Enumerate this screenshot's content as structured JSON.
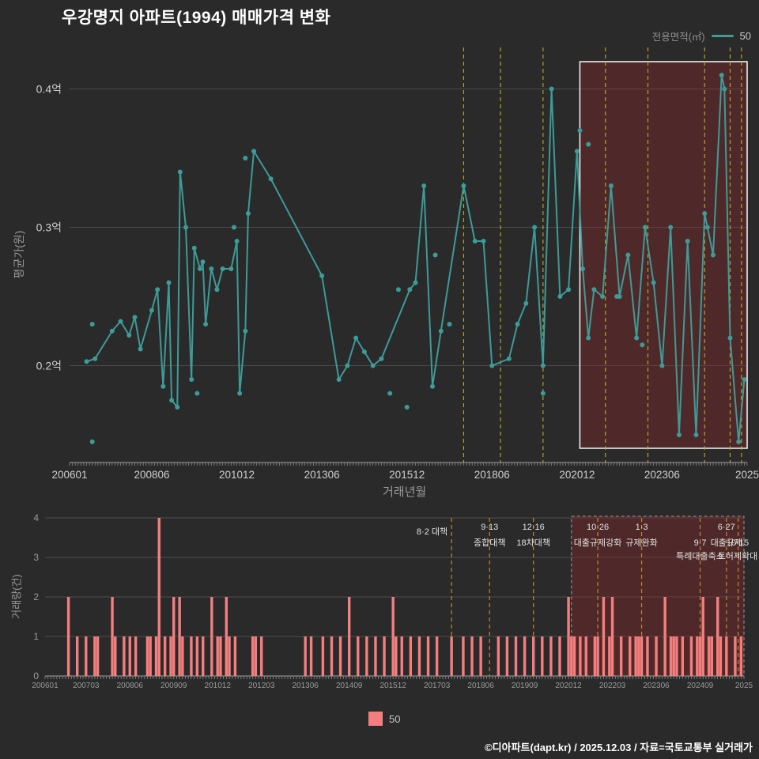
{
  "title": "우강명지 아파트(1994) 매매가격 변화",
  "legend": {
    "label": "전용면적(㎡)",
    "value": "50"
  },
  "bottom_legend": {
    "value": "50"
  },
  "footer": "©디아파트(dapt.kr) / 2025.12.03 / 자료=국토교통부 실거래가",
  "colors": {
    "background": "#2a2a2a",
    "title_text": "#ffffff",
    "axis_text": "#cfcfcf",
    "muted_text": "#9a9a9a",
    "grid": "#4d4d4d",
    "axis_line": "#8a8a8a",
    "line": "#3d9b98",
    "bar": "#f47e7e",
    "policy_top": "#b3a12c",
    "policy_bottom": "#c4862c",
    "highlight_fill": "rgba(150,40,40,0.35)",
    "highlight_border_top": "#ececec",
    "highlight_border_bottom": "#9a9a9a",
    "annotation_text": "#e2e2e2"
  },
  "chart_data": [
    {
      "type": "line",
      "title": "우강명지 아파트(1994) 매매가격 변화",
      "xlabel": "거래년월",
      "ylabel": "평균가(원)",
      "ylim": [
        0.13,
        0.43
      ],
      "grid": true,
      "legend_position": "top-right",
      "yticks": [
        {
          "value": 0.2,
          "label": "0.2억"
        },
        {
          "value": 0.3,
          "label": "0.3억"
        },
        {
          "value": 0.4,
          "label": "0.4억"
        }
      ],
      "xticks": [
        {
          "month": "200601",
          "label": "200601"
        },
        {
          "month": "200806",
          "label": "200806"
        },
        {
          "month": "201012",
          "label": "201012"
        },
        {
          "month": "201306",
          "label": "201306"
        },
        {
          "month": "201512",
          "label": "201512"
        },
        {
          "month": "201806",
          "label": "201806"
        },
        {
          "month": "202012",
          "label": "202012"
        },
        {
          "month": "202306",
          "label": "202306"
        },
        {
          "month": "202512",
          "label": "2025"
        }
      ],
      "series": [
        {
          "name": "50",
          "points": [
            [
              "200607",
              0.203
            ],
            [
              "200610",
              0.205
            ],
            [
              "200704",
              0.225
            ],
            [
              "200707",
              0.232
            ],
            [
              "200710",
              0.222
            ],
            [
              "200712",
              0.235
            ],
            [
              "200802",
              0.212
            ],
            [
              "200806",
              0.24
            ],
            [
              "200808",
              0.255
            ],
            [
              "200810",
              0.185
            ],
            [
              "200812",
              0.26
            ],
            [
              "200901",
              0.175
            ],
            [
              "200903",
              0.17
            ],
            [
              "200904",
              0.34
            ],
            [
              "200906",
              0.3
            ],
            [
              "200908",
              0.19
            ],
            [
              "200909",
              0.285
            ],
            [
              "200911",
              0.27
            ],
            [
              "200912",
              0.275
            ],
            [
              "201001",
              0.23
            ],
            [
              "201003",
              0.27
            ],
            [
              "201005",
              0.255
            ],
            [
              "201007",
              0.27
            ],
            [
              "201010",
              0.27
            ],
            [
              "201012",
              0.29
            ],
            [
              "201101",
              0.18
            ],
            [
              "201103",
              0.225
            ],
            [
              "201104",
              0.31
            ],
            [
              "201106",
              0.355
            ],
            [
              "201112",
              0.335
            ],
            [
              "201306",
              0.265
            ],
            [
              "201312",
              0.19
            ],
            [
              "201403",
              0.2
            ],
            [
              "201406",
              0.22
            ],
            [
              "201409",
              0.21
            ],
            [
              "201412",
              0.2
            ],
            [
              "201503",
              0.205
            ],
            [
              "201601",
              0.255
            ],
            [
              "201603",
              0.26
            ],
            [
              "201606",
              0.33
            ],
            [
              "201609",
              0.185
            ],
            [
              "201612",
              0.225
            ],
            [
              "201708",
              0.33
            ],
            [
              "201712",
              0.29
            ],
            [
              "201803",
              0.29
            ],
            [
              "201806",
              0.2
            ],
            [
              "201812",
              0.205
            ],
            [
              "201903",
              0.23
            ],
            [
              "201906",
              0.245
            ],
            [
              "201909",
              0.3
            ],
            [
              "201912",
              0.2
            ],
            [
              "202003",
              0.4
            ],
            [
              "202006",
              0.25
            ],
            [
              "202009",
              0.255
            ],
            [
              "202012",
              0.355
            ],
            [
              "202102",
              0.27
            ],
            [
              "202104",
              0.22
            ],
            [
              "202106",
              0.255
            ],
            [
              "202109",
              0.25
            ],
            [
              "202112",
              0.33
            ],
            [
              "202203",
              0.25
            ],
            [
              "202206",
              0.28
            ],
            [
              "202209",
              0.22
            ],
            [
              "202212",
              0.3
            ],
            [
              "202303",
              0.26
            ],
            [
              "202306",
              0.2
            ],
            [
              "202309",
              0.3
            ],
            [
              "202312",
              0.15
            ],
            [
              "202403",
              0.29
            ],
            [
              "202406",
              0.15
            ],
            [
              "202409",
              0.31
            ],
            [
              "202412",
              0.28
            ],
            [
              "202503",
              0.41
            ],
            [
              "202504",
              0.4
            ],
            [
              "202506",
              0.22
            ],
            [
              "202509",
              0.145
            ],
            [
              "202511",
              0.19
            ]
          ]
        }
      ],
      "extra_points": [
        [
          "200609",
          0.23
        ],
        [
          "200609",
          0.145
        ],
        [
          "200910",
          0.18
        ],
        [
          "201011",
          0.3
        ],
        [
          "201103",
          0.35
        ],
        [
          "201506",
          0.18
        ],
        [
          "201509",
          0.255
        ],
        [
          "201512",
          0.17
        ],
        [
          "201610",
          0.28
        ],
        [
          "201703",
          0.23
        ],
        [
          "201912",
          0.18
        ],
        [
          "202101",
          0.37
        ],
        [
          "202104",
          0.36
        ],
        [
          "202202",
          0.25
        ],
        [
          "202211",
          0.215
        ],
        [
          "202410",
          0.3
        ]
      ],
      "policy_lines": [
        "201708",
        "201809",
        "201912",
        "202110",
        "202301",
        "202409",
        "202506",
        "202510"
      ],
      "highlight_region": {
        "start": "202101",
        "end": "202512"
      }
    },
    {
      "type": "bar",
      "xlabel": "",
      "ylabel": "거래량(건)",
      "ylim": [
        0,
        4
      ],
      "grid": true,
      "yticks": [
        {
          "value": 0,
          "label": "0"
        },
        {
          "value": 1,
          "label": "1"
        },
        {
          "value": 2,
          "label": "2"
        },
        {
          "value": 3,
          "label": "3"
        },
        {
          "value": 4,
          "label": "4"
        }
      ],
      "xticks": [
        {
          "month": "200601",
          "label": "200601"
        },
        {
          "month": "200703",
          "label": "200703"
        },
        {
          "month": "200806",
          "label": "200806"
        },
        {
          "month": "200909",
          "label": "200909"
        },
        {
          "month": "201012",
          "label": "201012"
        },
        {
          "month": "201203",
          "label": "201203"
        },
        {
          "month": "201306",
          "label": "201306"
        },
        {
          "month": "201409",
          "label": "201409"
        },
        {
          "month": "201512",
          "label": "201512"
        },
        {
          "month": "201703",
          "label": "201703"
        },
        {
          "month": "201806",
          "label": "201806"
        },
        {
          "month": "201909",
          "label": "201909"
        },
        {
          "month": "202012",
          "label": "202012"
        },
        {
          "month": "202203",
          "label": "202203"
        },
        {
          "month": "202306",
          "label": "202306"
        },
        {
          "month": "202409",
          "label": "202409"
        },
        {
          "month": "202512",
          "label": "2025"
        }
      ],
      "bars": [
        [
          "200609",
          2
        ],
        [
          "200612",
          1
        ],
        [
          "200703",
          1
        ],
        [
          "200706",
          1
        ],
        [
          "200707",
          1
        ],
        [
          "200712",
          2
        ],
        [
          "200801",
          1
        ],
        [
          "200804",
          1
        ],
        [
          "200806",
          1
        ],
        [
          "200808",
          1
        ],
        [
          "200812",
          1
        ],
        [
          "200901",
          1
        ],
        [
          "200903",
          1
        ],
        [
          "200904",
          4
        ],
        [
          "200906",
          1
        ],
        [
          "200908",
          1
        ],
        [
          "200909",
          2
        ],
        [
          "200911",
          2
        ],
        [
          "200912",
          1
        ],
        [
          "201003",
          1
        ],
        [
          "201005",
          1
        ],
        [
          "201007",
          1
        ],
        [
          "201010",
          2
        ],
        [
          "201012",
          1
        ],
        [
          "201101",
          1
        ],
        [
          "201103",
          2
        ],
        [
          "201104",
          1
        ],
        [
          "201106",
          1
        ],
        [
          "201112",
          1
        ],
        [
          "201201",
          1
        ],
        [
          "201203",
          1
        ],
        [
          "201306",
          1
        ],
        [
          "201308",
          1
        ],
        [
          "201312",
          1
        ],
        [
          "201403",
          1
        ],
        [
          "201406",
          1
        ],
        [
          "201409",
          2
        ],
        [
          "201412",
          1
        ],
        [
          "201503",
          1
        ],
        [
          "201506",
          1
        ],
        [
          "201509",
          1
        ],
        [
          "201512",
          2
        ],
        [
          "201601",
          1
        ],
        [
          "201603",
          1
        ],
        [
          "201606",
          1
        ],
        [
          "201609",
          1
        ],
        [
          "201612",
          1
        ],
        [
          "201703",
          1
        ],
        [
          "201708",
          1
        ],
        [
          "201712",
          1
        ],
        [
          "201803",
          1
        ],
        [
          "201806",
          1
        ],
        [
          "201812",
          1
        ],
        [
          "201903",
          1
        ],
        [
          "201906",
          1
        ],
        [
          "201909",
          1
        ],
        [
          "201912",
          1
        ],
        [
          "202003",
          1
        ],
        [
          "202006",
          1
        ],
        [
          "202009",
          1
        ],
        [
          "202012",
          2
        ],
        [
          "202101",
          1
        ],
        [
          "202102",
          1
        ],
        [
          "202104",
          1
        ],
        [
          "202106",
          1
        ],
        [
          "202109",
          1
        ],
        [
          "202110",
          1
        ],
        [
          "202112",
          2
        ],
        [
          "202202",
          1
        ],
        [
          "202203",
          2
        ],
        [
          "202206",
          1
        ],
        [
          "202209",
          1
        ],
        [
          "202211",
          1
        ],
        [
          "202212",
          1
        ],
        [
          "202301",
          1
        ],
        [
          "202303",
          1
        ],
        [
          "202306",
          1
        ],
        [
          "202309",
          2
        ],
        [
          "202311",
          1
        ],
        [
          "202312",
          1
        ],
        [
          "202401",
          1
        ],
        [
          "202403",
          1
        ],
        [
          "202406",
          1
        ],
        [
          "202408",
          1
        ],
        [
          "202409",
          1
        ],
        [
          "202410",
          2
        ],
        [
          "202412",
          1
        ],
        [
          "202501",
          1
        ],
        [
          "202503",
          2
        ],
        [
          "202504",
          1
        ],
        [
          "202506",
          1
        ],
        [
          "202509",
          1
        ],
        [
          "202511",
          1
        ]
      ],
      "annotations": [
        {
          "x": "201708",
          "line1": "8·2 대책",
          "line2": "",
          "align": "end",
          "row": 0
        },
        {
          "x": "201809",
          "line1": "9·13",
          "line2": "종합대책",
          "row": 0
        },
        {
          "x": "201912",
          "line1": "12·16",
          "line2": "18차대책",
          "row": 0
        },
        {
          "x": "202110",
          "line1": "10·26",
          "line2": "대출규제강화",
          "row": 0
        },
        {
          "x": "202301",
          "line1": "1·3",
          "line2": "규제완화",
          "row": 0
        },
        {
          "x": "202409",
          "line1": "9·7",
          "line2": "특례대출축소",
          "row": 1
        },
        {
          "x": "202506",
          "line1": "6·27",
          "line2": "대출규제",
          "row": 0
        },
        {
          "x": "202510",
          "line1": "10·15",
          "line2": "토허제확대",
          "row": 1
        }
      ],
      "policy_lines": [
        "201708",
        "201809",
        "201912",
        "202110",
        "202301",
        "202409",
        "202506",
        "202510"
      ],
      "highlight_region": {
        "start": "202101",
        "end": "202512"
      }
    }
  ]
}
